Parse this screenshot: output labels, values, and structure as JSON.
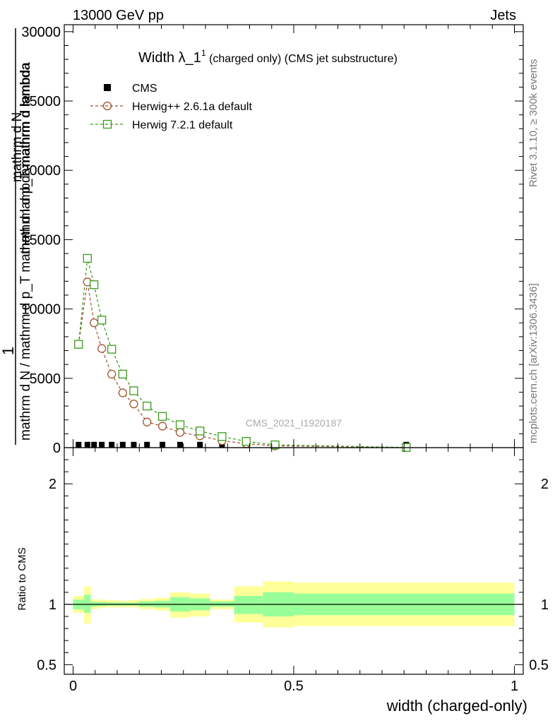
{
  "header": {
    "left": "13000 GeV pp",
    "right": "Jets"
  },
  "side_text": {
    "rivet": "Rivet 3.1.10, ≥ 300k events",
    "mcplots": "mcplots.cern.ch [arXiv:1306.3436]"
  },
  "watermark": "CMS_2021_I1920187",
  "title": {
    "main": "Width λ_1",
    "sup": "1",
    "rest": " (charged only) (CMS jet substructure)"
  },
  "ylabel_main": {
    "one": "1",
    "dN": "mathrm d N",
    "den": "mathrm d N / mathrm d p_T mathrm d lambda",
    "lines": [
      "mathrm d N",
      "mathrm d lambda",
      "mathrm d p_T mathrm d lambda",
      "mathrm d N / mathrm d p"
    ]
  },
  "ylabel_ratio": "Ratio to CMS",
  "xlabel": "width (charged-only)",
  "chart_data": [
    {
      "type": "line",
      "x_range": [
        -0.02,
        1.02
      ],
      "ylim": [
        0,
        30500
      ],
      "yticks": [
        0,
        5000,
        10000,
        15000,
        20000,
        25000,
        30000
      ],
      "ytick_labels": [
        "0",
        "5000",
        "10000",
        "15000",
        "20000",
        "25000",
        "30000"
      ],
      "legend": {
        "placement": "top-left"
      },
      "series": [
        {
          "name": "CMS",
          "color": "#000000",
          "marker": "square-filled",
          "x": [
            0.0125,
            0.0325,
            0.0475,
            0.065,
            0.0875,
            0.1125,
            0.1375,
            0.1675,
            0.2025,
            0.2425,
            0.2875,
            0.3375,
            0.3925,
            0.4575,
            0.755
          ],
          "y": [
            10,
            10,
            10,
            10,
            10,
            10,
            10,
            10,
            10,
            10,
            10,
            10,
            10,
            10,
            10
          ]
        },
        {
          "name": "Herwig++ 2.6.1a default",
          "color": "#a0522d",
          "marker": "circle-open",
          "x": [
            0.0125,
            0.0325,
            0.0475,
            0.065,
            0.0875,
            0.1125,
            0.1375,
            0.1675,
            0.2025,
            0.2425,
            0.2875,
            0.3375,
            0.3925,
            0.4575,
            0.755
          ],
          "y": [
            7450,
            11950,
            9000,
            7150,
            5300,
            3950,
            3150,
            1850,
            1550,
            1100,
            850,
            500,
            280,
            130,
            10
          ]
        },
        {
          "name": "Herwig 7.2.1 default",
          "color": "#3a9a1a",
          "marker": "square-open",
          "x": [
            0.0125,
            0.0325,
            0.0475,
            0.065,
            0.0875,
            0.1125,
            0.1375,
            0.1675,
            0.2025,
            0.2425,
            0.2875,
            0.3375,
            0.3925,
            0.4575,
            0.755
          ],
          "y": [
            7450,
            13650,
            11750,
            9200,
            7100,
            5300,
            4100,
            3000,
            2250,
            1650,
            1200,
            800,
            450,
            200,
            15
          ]
        }
      ]
    },
    {
      "type": "area",
      "ylabel": "Ratio to CMS",
      "xlabel": "width (charged-only)",
      "x_range": [
        -0.02,
        1.02
      ],
      "ylim": [
        0.42,
        2.3
      ],
      "yticks": [
        0.5,
        1,
        2
      ],
      "ytick_labels": [
        "0.5",
        "1",
        "2"
      ],
      "xticks": [
        0,
        0.5,
        1
      ],
      "xtick_labels": [
        "0",
        "0.5",
        "1"
      ],
      "reference_line": 1,
      "bins": [
        {
          "lo": 0.0,
          "hi": 0.025,
          "outer": [
            0.93,
            1.07
          ],
          "inner": [
            0.96,
            1.04
          ]
        },
        {
          "lo": 0.025,
          "hi": 0.04,
          "outer": [
            0.84,
            1.15
          ],
          "inner": [
            0.93,
            1.08
          ]
        },
        {
          "lo": 0.04,
          "hi": 0.055,
          "outer": [
            0.96,
            1.04
          ],
          "inner": [
            0.98,
            1.02
          ]
        },
        {
          "lo": 0.055,
          "hi": 0.075,
          "outer": [
            0.97,
            1.04
          ],
          "inner": [
            0.985,
            1.02
          ]
        },
        {
          "lo": 0.075,
          "hi": 0.1,
          "outer": [
            0.975,
            1.035
          ],
          "inner": [
            0.99,
            1.015
          ]
        },
        {
          "lo": 0.1,
          "hi": 0.125,
          "outer": [
            0.975,
            1.03
          ],
          "inner": [
            0.99,
            1.015
          ]
        },
        {
          "lo": 0.125,
          "hi": 0.15,
          "outer": [
            0.975,
            1.035
          ],
          "inner": [
            0.99,
            1.015
          ]
        },
        {
          "lo": 0.15,
          "hi": 0.185,
          "outer": [
            0.96,
            1.045
          ],
          "inner": [
            0.98,
            1.025
          ]
        },
        {
          "lo": 0.185,
          "hi": 0.22,
          "outer": [
            0.95,
            1.055
          ],
          "inner": [
            0.975,
            1.03
          ]
        },
        {
          "lo": 0.22,
          "hi": 0.265,
          "outer": [
            0.89,
            1.1
          ],
          "inner": [
            0.94,
            1.06
          ]
        },
        {
          "lo": 0.265,
          "hi": 0.31,
          "outer": [
            0.9,
            1.09
          ],
          "inner": [
            0.95,
            1.05
          ]
        },
        {
          "lo": 0.31,
          "hi": 0.365,
          "outer": [
            0.96,
            1.04
          ],
          "inner": [
            0.98,
            1.025
          ]
        },
        {
          "lo": 0.365,
          "hi": 0.43,
          "outer": [
            0.85,
            1.15
          ],
          "inner": [
            0.92,
            1.07
          ]
        },
        {
          "lo": 0.43,
          "hi": 0.5,
          "outer": [
            0.81,
            1.19
          ],
          "inner": [
            0.9,
            1.1
          ]
        },
        {
          "lo": 0.5,
          "hi": 1.0,
          "outer": [
            0.82,
            1.18
          ],
          "inner": [
            0.91,
            1.09
          ]
        }
      ]
    }
  ]
}
